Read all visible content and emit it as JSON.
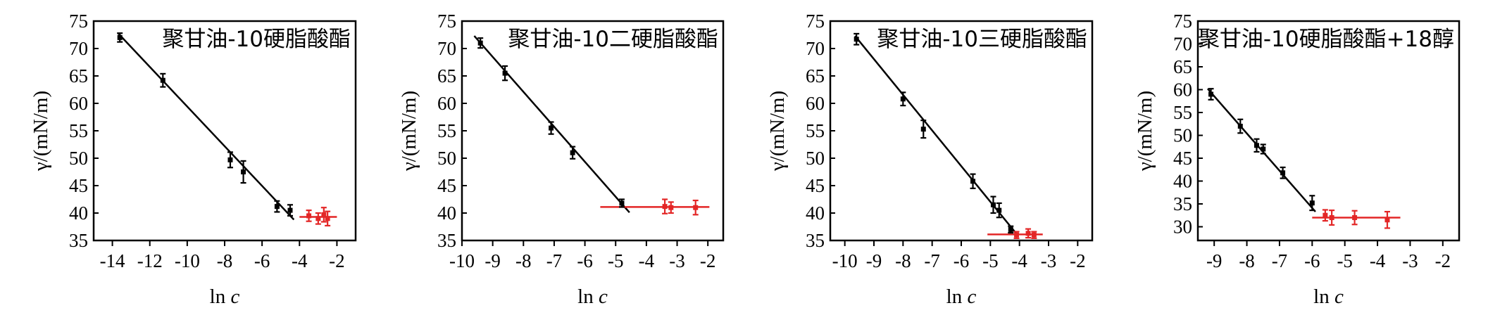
{
  "chart_data": [
    {
      "type": "scatter",
      "title": "聚甘油-10硬脂酸酯",
      "xlabel_prefix": "ln ",
      "xlabel_var": "c",
      "ylabel": "γ/(mN/m)",
      "xlim": [
        -15,
        -1
      ],
      "ylim": [
        35,
        75
      ],
      "xticks": [
        -14,
        -12,
        -10,
        -8,
        -6,
        -4,
        -2
      ],
      "xtick_labels": [
        "-14",
        "-12",
        "-10",
        "-8",
        "-6",
        "-4",
        "-2"
      ],
      "yticks": [
        35,
        40,
        45,
        50,
        55,
        60,
        65,
        70,
        75
      ],
      "ytick_labels": [
        "35",
        "40",
        "45",
        "50",
        "55",
        "60",
        "65",
        "70",
        "75"
      ],
      "colors": {
        "points": "#000000",
        "plateau": "#e32626"
      },
      "series": [
        {
          "points": [
            {
              "x": -13.6,
              "y": 72.0,
              "err": 0.8
            },
            {
              "x": -11.3,
              "y": 64.2,
              "err": 1.2
            },
            {
              "x": -7.7,
              "y": 49.7,
              "err": 1.4
            },
            {
              "x": -7.0,
              "y": 47.5,
              "err": 2.0
            },
            {
              "x": -5.2,
              "y": 41.2,
              "err": 1.0
            },
            {
              "x": -4.5,
              "y": 40.5,
              "err": 1.0
            }
          ]
        },
        {
          "points": [
            {
              "x": -3.5,
              "y": 39.5,
              "err": 1.0
            },
            {
              "x": -3.0,
              "y": 39.0,
              "err": 1.0
            },
            {
              "x": -2.7,
              "y": 39.7,
              "err": 1.3
            },
            {
              "x": -2.5,
              "y": 39.0,
              "err": 1.3
            }
          ]
        }
      ],
      "fit_line": {
        "x": [
          -13.7,
          -4.3
        ],
        "y": [
          72.8,
          38.8
        ]
      },
      "plateau_line": {
        "x": [
          -4.0,
          -2.0
        ],
        "y": [
          39.3,
          39.3
        ]
      }
    },
    {
      "type": "scatter",
      "title": "聚甘油-10二硬脂酸酯",
      "xlabel_prefix": "ln ",
      "xlabel_var": "c",
      "ylabel": "γ/(mN/m)",
      "xlim": [
        -10,
        -1.5
      ],
      "ylim": [
        35,
        75
      ],
      "xticks": [
        -10,
        -9,
        -8,
        -7,
        -6,
        -5,
        -4,
        -3,
        -2
      ],
      "xtick_labels": [
        "-10",
        "-9",
        "-8",
        "-7",
        "-6",
        "-5",
        "-4",
        "-3",
        "-2"
      ],
      "yticks": [
        35,
        40,
        45,
        50,
        55,
        60,
        65,
        70,
        75
      ],
      "ytick_labels": [
        "35",
        "40",
        "45",
        "50",
        "55",
        "60",
        "65",
        "70",
        "75"
      ],
      "colors": {
        "points": "#000000",
        "plateau": "#e32626"
      },
      "series": [
        {
          "points": [
            {
              "x": -9.4,
              "y": 71.0,
              "err": 0.9
            },
            {
              "x": -8.6,
              "y": 65.5,
              "err": 1.3
            },
            {
              "x": -7.1,
              "y": 55.5,
              "err": 1.1
            },
            {
              "x": -6.4,
              "y": 51.0,
              "err": 1.1
            },
            {
              "x": -4.8,
              "y": 41.8,
              "err": 0.7
            }
          ]
        },
        {
          "points": [
            {
              "x": -3.4,
              "y": 41.2,
              "err": 1.3
            },
            {
              "x": -3.2,
              "y": 41.0,
              "err": 1.0
            },
            {
              "x": -2.4,
              "y": 41.0,
              "err": 1.3
            }
          ]
        }
      ],
      "fit_line": {
        "x": [
          -9.6,
          -4.55
        ],
        "y": [
          72.3,
          40.1
        ]
      },
      "plateau_line": {
        "x": [
          -5.5,
          -1.95
        ],
        "y": [
          41.1,
          41.1
        ]
      }
    },
    {
      "type": "scatter",
      "title": "聚甘油-10三硬脂酸酯",
      "xlabel_prefix": "ln ",
      "xlabel_var": "c",
      "ylabel": "γ/(mN/m)",
      "xlim": [
        -10.5,
        -1.5
      ],
      "ylim": [
        35,
        75
      ],
      "xticks": [
        -10,
        -9,
        -8,
        -7,
        -6,
        -5,
        -4,
        -3,
        -2
      ],
      "xtick_labels": [
        "-10",
        "-9",
        "-8",
        "-7",
        "-6",
        "-5",
        "-4",
        "-3",
        "-2"
      ],
      "yticks": [
        35,
        40,
        45,
        50,
        55,
        60,
        65,
        70,
        75
      ],
      "ytick_labels": [
        "35",
        "40",
        "45",
        "50",
        "55",
        "60",
        "65",
        "70",
        "75"
      ],
      "colors": {
        "points": "#000000",
        "plateau": "#e32626"
      },
      "series": [
        {
          "points": [
            {
              "x": -9.6,
              "y": 71.7,
              "err": 1.0
            },
            {
              "x": -8.0,
              "y": 60.8,
              "err": 1.2
            },
            {
              "x": -7.3,
              "y": 55.3,
              "err": 1.6
            },
            {
              "x": -5.6,
              "y": 45.8,
              "err": 1.3
            },
            {
              "x": -4.9,
              "y": 41.5,
              "err": 1.5
            },
            {
              "x": -4.7,
              "y": 40.5,
              "err": 1.3
            },
            {
              "x": -4.3,
              "y": 37.0,
              "err": 0.6
            }
          ]
        },
        {
          "points": [
            {
              "x": -4.1,
              "y": 36.0,
              "err": 0.6
            },
            {
              "x": -3.7,
              "y": 36.3,
              "err": 0.8
            },
            {
              "x": -3.5,
              "y": 36.0,
              "err": 0.6
            }
          ]
        }
      ],
      "fit_line": {
        "x": [
          -9.65,
          -4.1
        ],
        "y": [
          72.3,
          36.2
        ]
      },
      "plateau_line": {
        "x": [
          -5.1,
          -3.2
        ],
        "y": [
          36.1,
          36.1
        ]
      }
    },
    {
      "type": "scatter",
      "title": "聚甘油-10硬脂酸酯+18醇",
      "xlabel_prefix": "ln ",
      "xlabel_var": "c",
      "ylabel": "γ/(mN/m)",
      "xlim": [
        -9.5,
        -1.5
      ],
      "ylim": [
        27,
        75
      ],
      "xticks": [
        -9,
        -8,
        -7,
        -6,
        -5,
        -4,
        -3,
        -2
      ],
      "xtick_labels": [
        "-9",
        "-8",
        "-7",
        "-6",
        "-5",
        "-4",
        "-3",
        "-2"
      ],
      "yticks": [
        30,
        35,
        40,
        45,
        50,
        55,
        60,
        65,
        70,
        75
      ],
      "ytick_labels": [
        "30",
        "35",
        "40",
        "45",
        "50",
        "55",
        "60",
        "65",
        "70",
        "75"
      ],
      "colors": {
        "points": "#000000",
        "plateau": "#e32626"
      },
      "series": [
        {
          "points": [
            {
              "x": -9.1,
              "y": 59.0,
              "err": 1.2
            },
            {
              "x": -8.2,
              "y": 52.0,
              "err": 1.5
            },
            {
              "x": -7.7,
              "y": 47.8,
              "err": 1.4
            },
            {
              "x": -7.5,
              "y": 47.0,
              "err": 1.0
            },
            {
              "x": -6.9,
              "y": 41.8,
              "err": 1.2
            },
            {
              "x": -6.0,
              "y": 35.2,
              "err": 1.6
            }
          ]
        },
        {
          "points": [
            {
              "x": -5.6,
              "y": 32.5,
              "err": 1.2
            },
            {
              "x": -5.4,
              "y": 32.0,
              "err": 1.6
            },
            {
              "x": -4.7,
              "y": 32.0,
              "err": 1.5
            },
            {
              "x": -3.7,
              "y": 31.5,
              "err": 1.8
            }
          ]
        }
      ],
      "fit_line": {
        "x": [
          -9.2,
          -5.9
        ],
        "y": [
          60.2,
          33.3
        ]
      },
      "plateau_line": {
        "x": [
          -6.0,
          -3.3
        ],
        "y": [
          32.0,
          32.0
        ]
      }
    }
  ]
}
